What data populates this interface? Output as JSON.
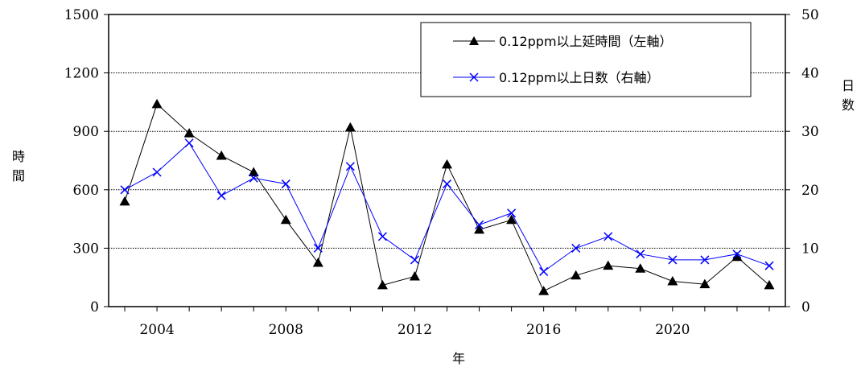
{
  "chart_data": {
    "type": "line",
    "xlabel": "年",
    "y_left_label": "時間",
    "y_right_label": "日数",
    "x": [
      2003,
      2004,
      2005,
      2006,
      2007,
      2008,
      2009,
      2010,
      2011,
      2012,
      2013,
      2014,
      2015,
      2016,
      2017,
      2018,
      2019,
      2020,
      2021,
      2022,
      2023
    ],
    "x_ticks": [
      "2004",
      "2008",
      "2012",
      "2016",
      "2020"
    ],
    "x_range": [
      2002.5,
      2023.5
    ],
    "y_left_ticks": [
      "0",
      "300",
      "600",
      "900",
      "1200",
      "1500"
    ],
    "y_left_range": [
      0,
      1500
    ],
    "y_right_ticks": [
      "0",
      "10",
      "20",
      "30",
      "40",
      "50"
    ],
    "y_right_range": [
      0,
      50
    ],
    "grid": "horizontal-dotted",
    "legend_position": "top-right",
    "series": [
      {
        "name": "0.12ppm以上延時間（左軸）",
        "axis": "left",
        "marker": "triangle",
        "color": "#000000",
        "values": [
          540,
          1040,
          890,
          775,
          690,
          445,
          225,
          920,
          110,
          155,
          730,
          395,
          445,
          80,
          160,
          210,
          195,
          130,
          115,
          255,
          110
        ]
      },
      {
        "name": "0.12ppm以上日数（右軸）",
        "axis": "right",
        "marker": "x",
        "color": "#0000ff",
        "values": [
          20,
          23,
          28,
          19,
          22,
          21,
          10,
          24,
          12,
          8,
          21,
          14,
          16,
          6,
          10,
          12,
          9,
          8,
          8,
          9,
          7
        ]
      }
    ]
  }
}
